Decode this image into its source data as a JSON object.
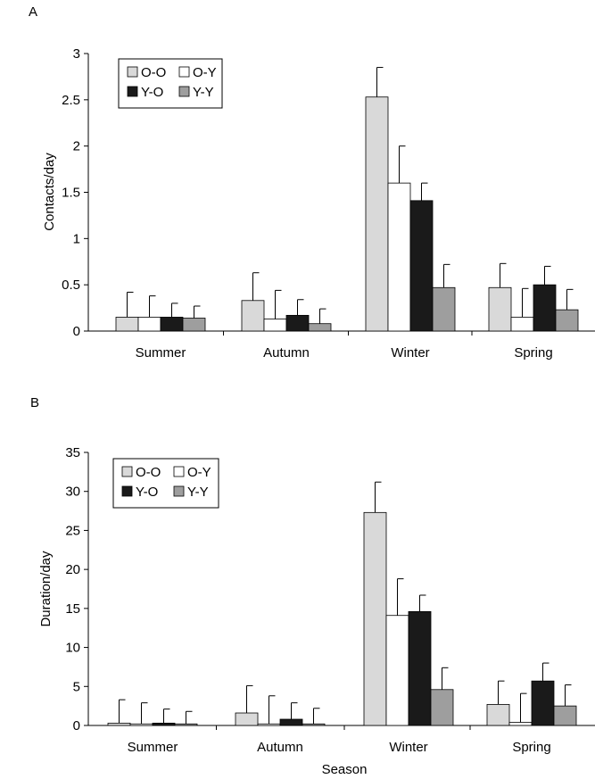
{
  "panels": [
    {
      "letter": "A"
    },
    {
      "letter": "B"
    }
  ],
  "colors": {
    "O-O": "#d9d9d9",
    "O-Y": "#ffffff",
    "Y-O": "#1a1a1a",
    "Y-Y": "#9e9e9e"
  },
  "chart_data": [
    {
      "type": "bar",
      "panel": "A",
      "categories": [
        "Summer",
        "Autumn",
        "Winter",
        "Spring"
      ],
      "series": [
        {
          "name": "O-O",
          "values": [
            0.15,
            0.33,
            2.53,
            0.47
          ],
          "error": [
            0.27,
            0.3,
            0.32,
            0.26
          ]
        },
        {
          "name": "O-Y",
          "values": [
            0.15,
            0.13,
            1.6,
            0.15
          ],
          "error": [
            0.23,
            0.31,
            0.4,
            0.31
          ]
        },
        {
          "name": "Y-O",
          "values": [
            0.15,
            0.17,
            1.41,
            0.5
          ],
          "error": [
            0.15,
            0.17,
            0.19,
            0.2
          ]
        },
        {
          "name": "Y-Y",
          "values": [
            0.14,
            0.08,
            0.47,
            0.23
          ],
          "error": [
            0.13,
            0.16,
            0.25,
            0.22
          ]
        }
      ],
      "yticks": [
        "0",
        "0.5",
        "1",
        "1.5",
        "2",
        "2.5",
        "3"
      ],
      "ylim": [
        0,
        3
      ],
      "ylabel": "Contacts/day",
      "xlabel": "",
      "legend": "top-left"
    },
    {
      "type": "bar",
      "panel": "B",
      "categories": [
        "Summer",
        "Autumn",
        "Winter",
        "Spring"
      ],
      "series": [
        {
          "name": "O-O",
          "values": [
            0.3,
            1.6,
            27.3,
            2.7
          ],
          "error": [
            3.0,
            3.5,
            3.9,
            3.0
          ]
        },
        {
          "name": "O-Y",
          "values": [
            0.2,
            0.2,
            14.1,
            0.4
          ],
          "error": [
            2.7,
            3.6,
            4.7,
            3.7
          ]
        },
        {
          "name": "Y-O",
          "values": [
            0.3,
            0.8,
            14.6,
            5.7
          ],
          "error": [
            1.8,
            2.1,
            2.1,
            2.3
          ]
        },
        {
          "name": "Y-Y",
          "values": [
            0.2,
            0.2,
            4.6,
            2.5
          ],
          "error": [
            1.6,
            2.0,
            2.8,
            2.7
          ]
        }
      ],
      "yticks": [
        "0",
        "5",
        "10",
        "15",
        "20",
        "25",
        "30",
        "35"
      ],
      "ylim": [
        0,
        35
      ],
      "ylabel": "Duration/day",
      "xlabel": "Season",
      "legend": "top-left"
    }
  ]
}
